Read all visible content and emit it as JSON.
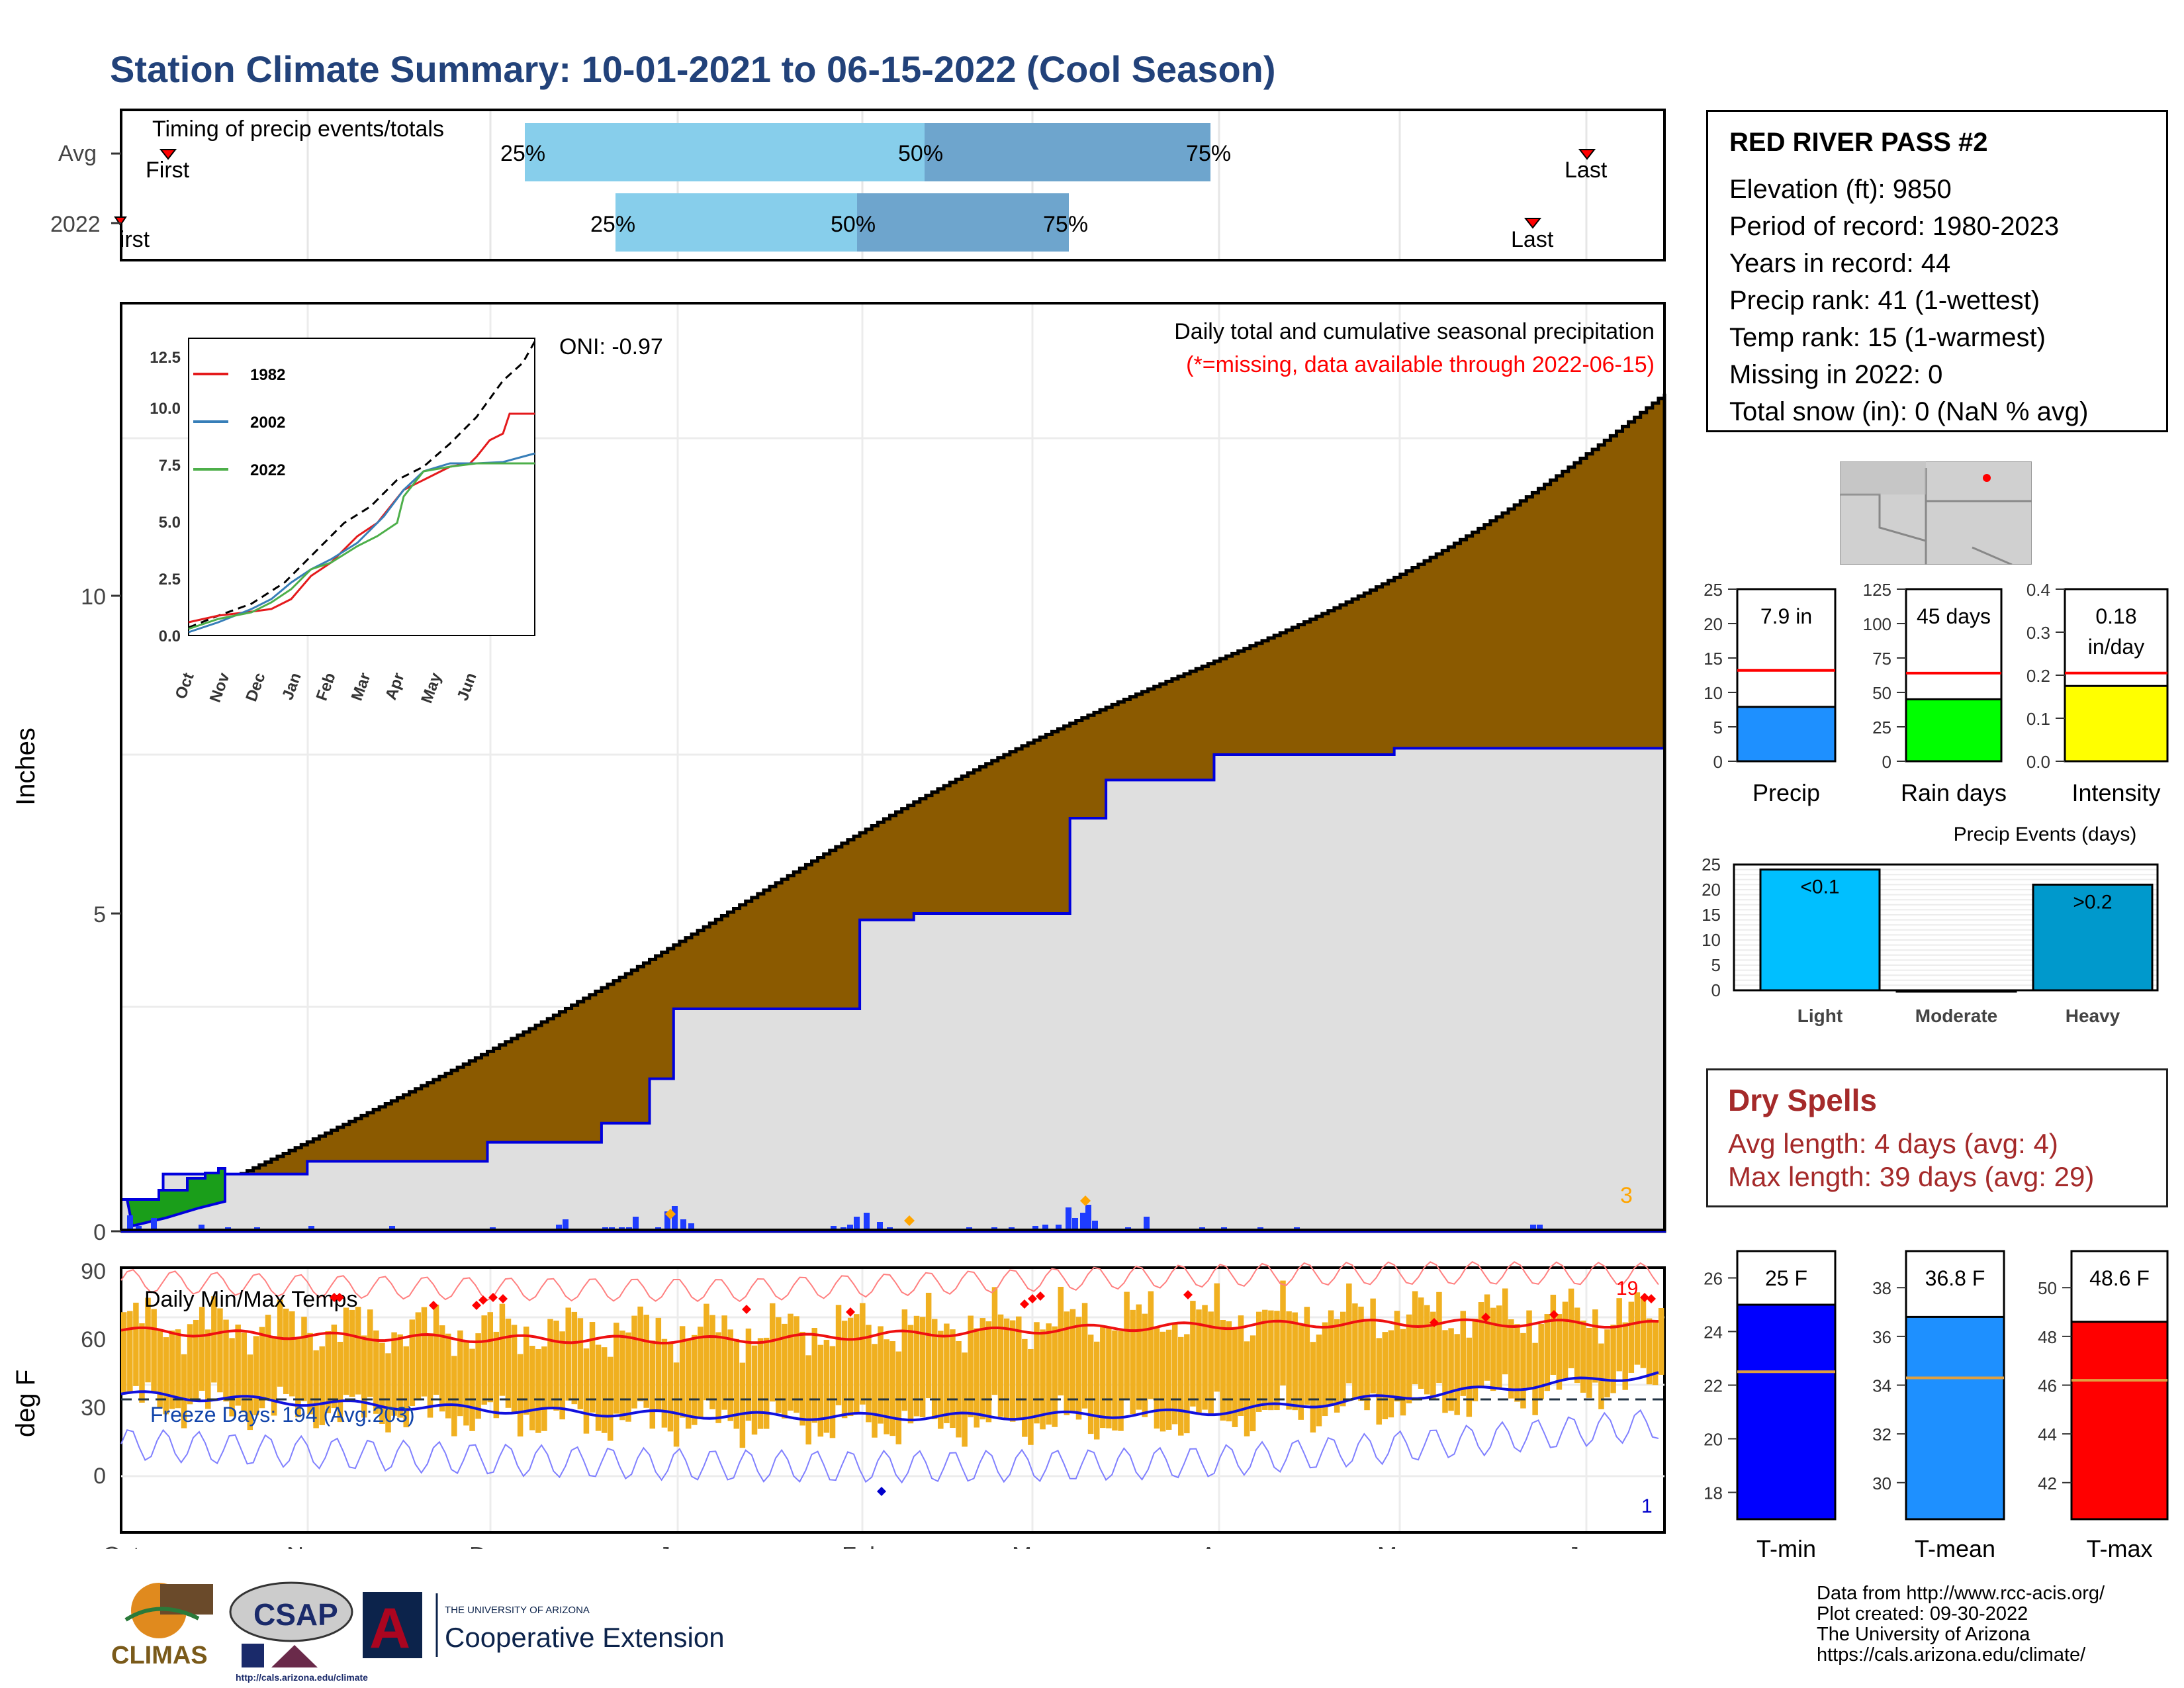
{
  "title": "Station Climate Summary: 10-01-2021 to 06-15-2022 (Cool Season)",
  "station": {
    "name": "RED RIVER PASS #2",
    "lines": [
      "Elevation (ft): 9850",
      "Period of record: 1980-2023",
      "Years in record: 44",
      "Precip rank: 41 (1-wettest)",
      "Temp rank: 15 (1-warmest)",
      "Missing in 2022: 0",
      "Total snow (in): 0 (NaN % avg)"
    ]
  },
  "timing": {
    "label": "Timing of precip events/totals",
    "rows": [
      "Avg",
      "2022"
    ],
    "avg": {
      "first_label": "First",
      "last_label": "Last",
      "q25": "25%",
      "q50": "50%",
      "q75": "75%"
    },
    "y2022": {
      "first_label": "First",
      "last_label": "Last",
      "q25": "25%",
      "q50": "50%",
      "q75": "75%"
    }
  },
  "main": {
    "ylabel": "Inches",
    "oni": "ONI: -0.97",
    "subtitle": "Daily total and cumulative seasonal precipitation",
    "missing_note": "(*=missing, data available through 2022-06-15)",
    "corner_count": "3",
    "y_ticks": [
      "0",
      "5",
      "10"
    ]
  },
  "months": [
    "Oct",
    "Nov",
    "Dec",
    "Jan",
    "Feb",
    "Mar",
    "Apr",
    "May",
    "Jun"
  ],
  "inset": {
    "legend": [
      "1982",
      "2002",
      "2022"
    ],
    "y_ticks": [
      "0.0",
      "2.5",
      "5.0",
      "7.5",
      "10.0",
      "12.5"
    ]
  },
  "temps": {
    "label": "Daily Min/Max Temps",
    "ylabel": "deg F",
    "freeze": "Freeze Days: 194 (Avg:203)",
    "count_hi": "19",
    "count_lo": "1",
    "y_ticks": [
      "90",
      "60",
      "30",
      "0"
    ]
  },
  "stat_bars": [
    {
      "label": "Precip",
      "value_text": "7.9 in",
      "value": 7.9,
      "avg": 13.2,
      "ylim": [
        0,
        25
      ],
      "ticks": [
        "25",
        "20",
        "15",
        "10",
        "5",
        "0"
      ],
      "color": "#1e90ff"
    },
    {
      "label": "Rain days",
      "value_text": "45 days",
      "value": 45,
      "avg": 64,
      "ylim": [
        0,
        125
      ],
      "ticks": [
        "125",
        "100",
        "75",
        "50",
        "25",
        "0"
      ],
      "color": "#00ff00"
    },
    {
      "label": "Intensity",
      "value_text": "0.18 in/day",
      "value": 0.175,
      "avg": 0.205,
      "ylim": [
        0,
        0.4
      ],
      "ticks": [
        "0.4",
        "0.3",
        "0.2",
        "0.1",
        "0.0"
      ],
      "color": "#ffff00"
    }
  ],
  "events": {
    "title": "Precip Events (days)",
    "categories": [
      "Light",
      "Moderate",
      "Heavy"
    ],
    "bar_labels": [
      "<0.1",
      "",
      ">0.2"
    ],
    "values": [
      24,
      0,
      21
    ],
    "y_ticks": [
      "25",
      "20",
      "15",
      "10",
      "5",
      "0"
    ]
  },
  "dry_spells": {
    "title": "Dry Spells",
    "avg": "Avg length: 4 days (avg: 4)",
    "max": "Max length: 39 days (avg: 29)"
  },
  "temp_bars": [
    {
      "label": "T-min",
      "value_text": "25 F",
      "value": 25,
      "avg": 22.5,
      "ylim": [
        17,
        27
      ],
      "ticks": [
        "26",
        "24",
        "22",
        "20",
        "18"
      ],
      "color": "#0000ff"
    },
    {
      "label": "T-mean",
      "value_text": "36.8 F",
      "value": 36.8,
      "avg": 34.3,
      "ylim": [
        28.5,
        39.5
      ],
      "ticks": [
        "38",
        "36",
        "34",
        "32",
        "30"
      ],
      "color": "#1e90ff"
    },
    {
      "label": "T-max",
      "value_text": "48.6 F",
      "value": 48.6,
      "avg": 46.2,
      "ylim": [
        40.5,
        51.5
      ],
      "ticks": [
        "50",
        "48",
        "46",
        "44",
        "42"
      ],
      "color": "#ff0000"
    }
  ],
  "credits": [
    "Data from http://www.rcc-acis.org/",
    "Plot created: 09-30-2022",
    "The University of Arizona",
    "https://cals.arizona.edu/climate/"
  ],
  "logos": {
    "climas": "CLIMAS",
    "csap": "CSAP",
    "csap_url": "http://cals.arizona.edu/climate",
    "ua_small": "THE UNIVERSITY OF ARIZONA",
    "ua_big": "Cooperative Extension"
  },
  "chart_data": {
    "type": "area",
    "title": "Daily total and cumulative seasonal precipitation",
    "ylabel": "Inches",
    "x_range": [
      "2021-10-01",
      "2022-06-15"
    ],
    "ylim": [
      0,
      13
    ],
    "series": [
      {
        "name": "2022",
        "x": [
          "2021-10-01",
          "2021-10-08",
          "2021-11-01",
          "2021-12-01",
          "2021-12-20",
          "2021-12-28",
          "2022-01-01",
          "2022-02-01",
          "2022-02-10",
          "2022-03-08",
          "2022-03-14",
          "2022-04-01",
          "2022-05-01",
          "2022-06-15"
        ],
        "y": [
          0.5,
          0.9,
          1.1,
          1.4,
          1.7,
          2.4,
          3.5,
          4.9,
          5.0,
          6.5,
          7.1,
          7.5,
          7.6,
          7.9
        ]
      }
    ]
  }
}
